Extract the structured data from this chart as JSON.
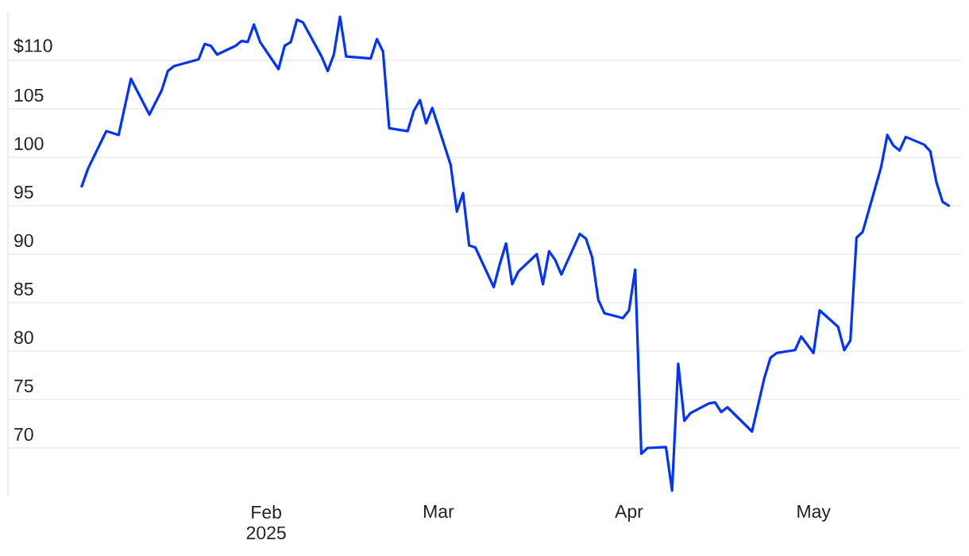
{
  "chart_data": {
    "type": "line",
    "x": [
      "2025-01-02",
      "2025-01-03",
      "2025-01-06",
      "2025-01-08",
      "2025-01-10",
      "2025-01-13",
      "2025-01-15",
      "2025-01-16",
      "2025-01-17",
      "2025-01-21",
      "2025-01-22",
      "2025-01-23",
      "2025-01-24",
      "2025-01-27",
      "2025-01-28",
      "2025-01-29",
      "2025-01-30",
      "2025-01-31",
      "2025-02-03",
      "2025-02-04",
      "2025-02-05",
      "2025-02-06",
      "2025-02-07",
      "2025-02-10",
      "2025-02-11",
      "2025-02-12",
      "2025-02-13",
      "2025-02-14",
      "2025-02-18",
      "2025-02-19",
      "2025-02-20",
      "2025-02-21",
      "2025-02-24",
      "2025-02-25",
      "2025-02-26",
      "2025-02-27",
      "2025-02-28",
      "2025-03-03",
      "2025-03-04",
      "2025-03-05",
      "2025-03-06",
      "2025-03-07",
      "2025-03-10",
      "2025-03-11",
      "2025-03-12",
      "2025-03-13",
      "2025-03-14",
      "2025-03-17",
      "2025-03-18",
      "2025-03-19",
      "2025-03-20",
      "2025-03-21",
      "2025-03-24",
      "2025-03-25",
      "2025-03-26",
      "2025-03-27",
      "2025-03-28",
      "2025-03-31",
      "2025-04-01",
      "2025-04-02",
      "2025-04-03",
      "2025-04-04",
      "2025-04-07",
      "2025-04-08",
      "2025-04-09",
      "2025-04-10",
      "2025-04-11",
      "2025-04-14",
      "2025-04-15",
      "2025-04-16",
      "2025-04-17",
      "2025-04-21",
      "2025-04-23",
      "2025-04-24",
      "2025-04-25",
      "2025-04-28",
      "2025-04-29",
      "2025-05-01",
      "2025-05-02",
      "2025-05-05",
      "2025-05-06",
      "2025-05-07",
      "2025-05-08",
      "2025-05-09",
      "2025-05-12",
      "2025-05-13",
      "2025-05-14",
      "2025-05-15",
      "2025-05-16",
      "2025-05-19",
      "2025-05-20",
      "2025-05-21",
      "2025-05-22",
      "2025-05-23"
    ],
    "values": [
      97.0,
      98.8,
      102.7,
      102.3,
      108.1,
      104.4,
      106.9,
      108.9,
      109.4,
      110.1,
      111.7,
      111.5,
      110.6,
      111.5,
      112.0,
      111.9,
      113.7,
      111.9,
      109.1,
      111.5,
      111.9,
      114.2,
      113.9,
      110.4,
      108.9,
      110.6,
      114.5,
      110.4,
      110.2,
      112.2,
      110.9,
      103.0,
      102.7,
      104.8,
      105.9,
      103.5,
      105.1,
      99.2,
      94.4,
      96.3,
      90.9,
      90.7,
      86.6,
      89.0,
      91.1,
      86.9,
      88.2,
      90.0,
      86.9,
      90.3,
      89.4,
      87.9,
      92.1,
      91.6,
      89.7,
      85.3,
      83.9,
      83.4,
      84.2,
      88.4,
      69.4,
      70.0,
      70.1,
      65.6,
      78.7,
      72.8,
      73.6,
      74.6,
      74.7,
      73.7,
      74.2,
      71.7,
      77.2,
      79.3,
      79.8,
      80.1,
      81.5,
      79.8,
      84.2,
      82.5,
      80.1,
      81.1,
      91.7,
      92.3,
      99.0,
      102.3,
      101.2,
      100.7,
      102.1,
      101.3,
      100.6,
      97.4,
      95.4,
      95.0
    ],
    "color": "#0033ff",
    "line_style": "solid",
    "xlim": [
      "2024-12-21",
      "2025-05-25"
    ],
    "ylim": [
      65,
      115
    ],
    "xticks": [
      {
        "value": "2025-02-01",
        "label": "Feb 2025"
      },
      {
        "value": "2025-03-01",
        "label": "Mar"
      },
      {
        "value": "2025-04-01",
        "label": "Apr"
      },
      {
        "value": "2025-05-01",
        "label": "May"
      }
    ],
    "yticks": [
      70,
      75,
      80,
      85,
      90,
      95,
      100,
      105,
      {
        "value": 110,
        "label": "$110"
      }
    ],
    "grid": "y"
  }
}
